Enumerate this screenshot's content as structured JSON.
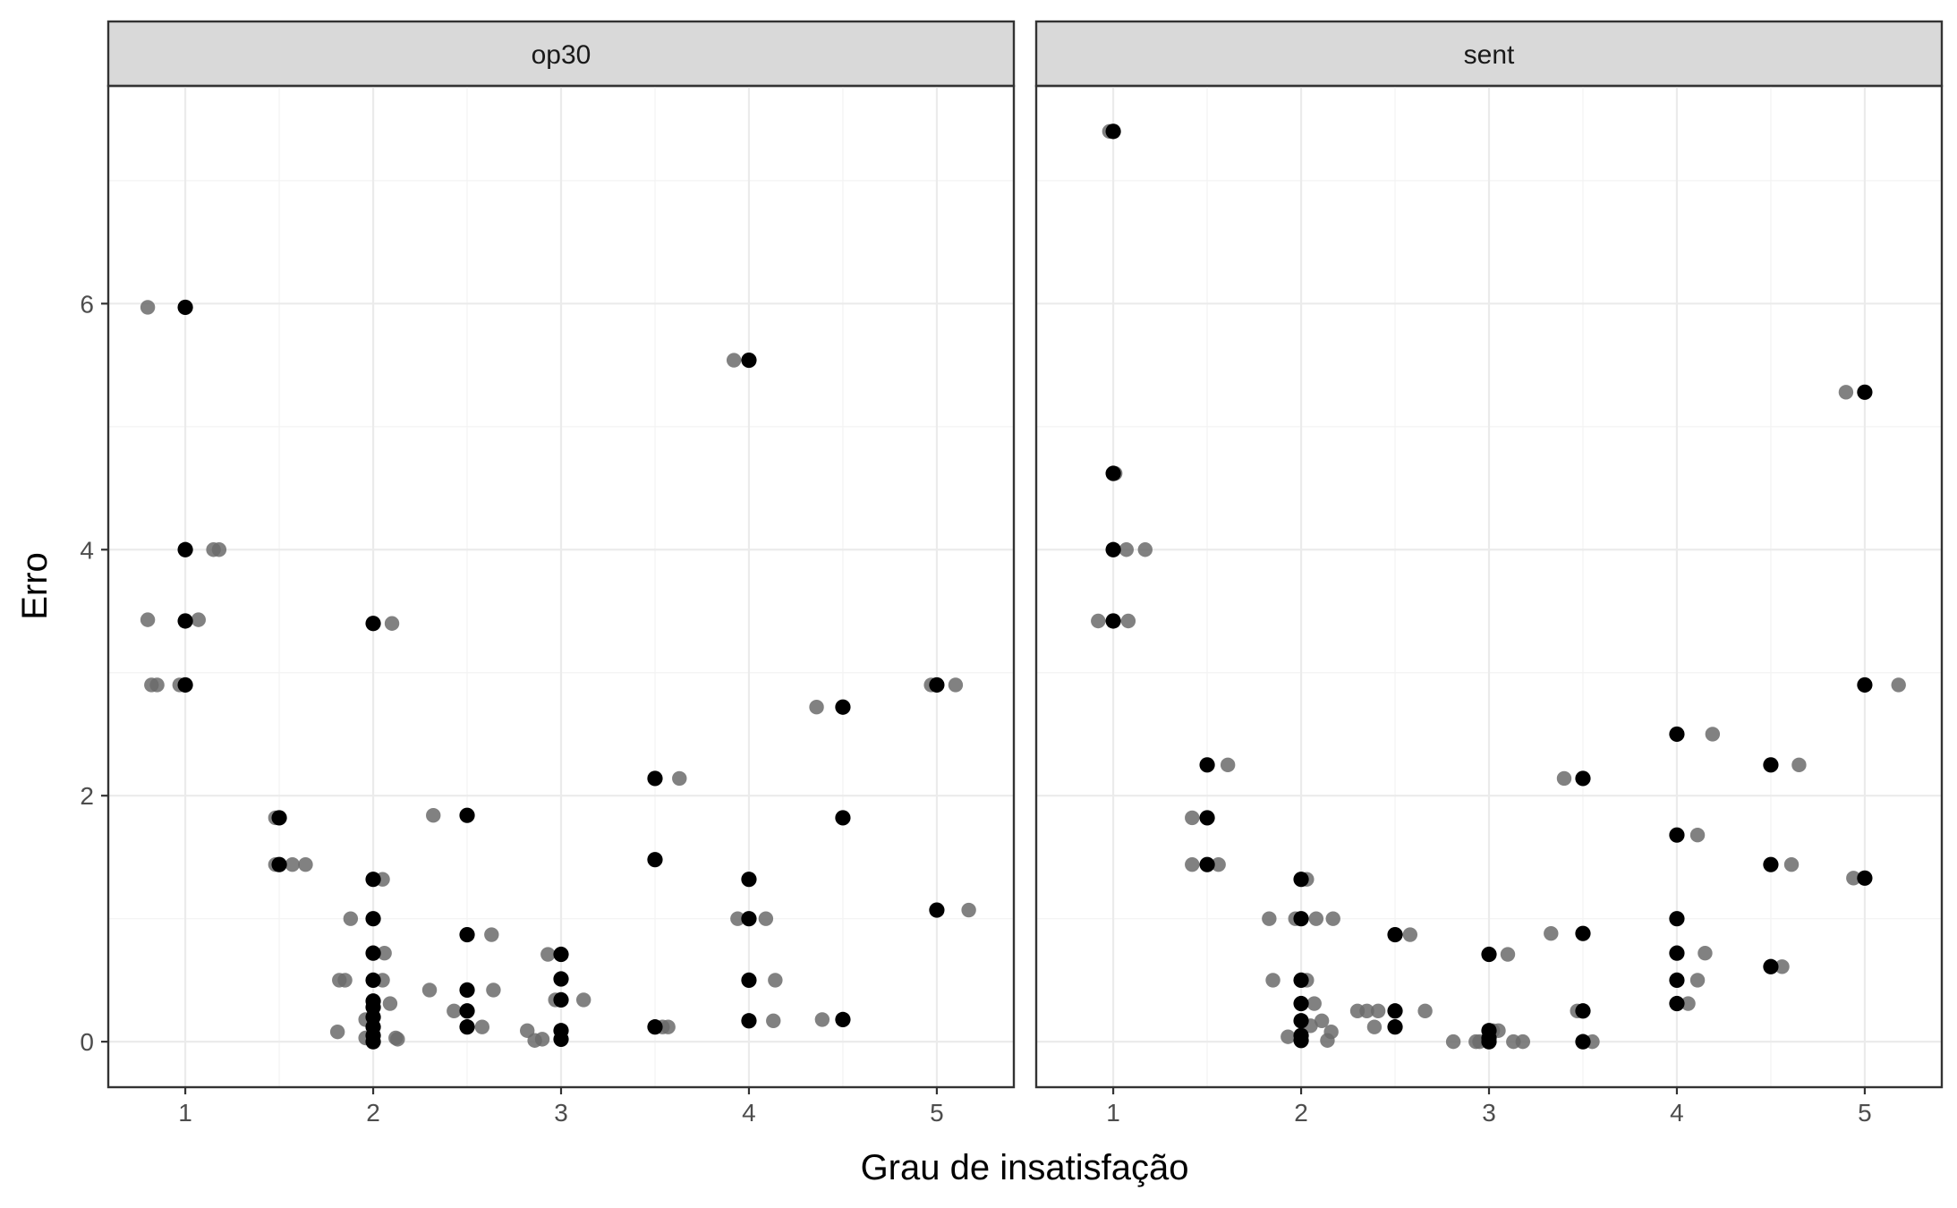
{
  "chart_data": {
    "type": "scatter",
    "xlabel": "Grau de insatisfação",
    "ylabel": "Erro",
    "xlim": [
      0.59,
      5.41
    ],
    "ylim": [
      -0.37,
      7.77
    ],
    "x_ticks": [
      "1",
      "2",
      "3",
      "4",
      "5"
    ],
    "y_ticks": [
      "0",
      "2",
      "4",
      "6"
    ],
    "grid": true,
    "legend": "none",
    "colors": {
      "jitter_points": "#6b6b6b",
      "exact_points": "#000000",
      "strip_fill": "#d9d9d9",
      "grid_major": "#ebebeb",
      "grid_minor": "#f3f3f3",
      "panel_border": "#333333"
    },
    "panels": [
      {
        "title": "op30",
        "exact_points": [
          [
            1,
            5.97
          ],
          [
            1,
            4.0
          ],
          [
            1,
            3.42
          ],
          [
            1,
            2.9
          ],
          [
            1.5,
            1.82
          ],
          [
            1.5,
            1.44
          ],
          [
            2,
            3.4
          ],
          [
            2,
            1.32
          ],
          [
            2,
            1.0
          ],
          [
            2,
            0.72
          ],
          [
            2,
            0.5
          ],
          [
            2,
            0.33
          ],
          [
            2,
            0.28
          ],
          [
            2,
            0.2
          ],
          [
            2,
            0.12
          ],
          [
            2,
            0.05
          ],
          [
            2,
            0.0
          ],
          [
            2.5,
            1.84
          ],
          [
            2.5,
            0.87
          ],
          [
            2.5,
            0.42
          ],
          [
            2.5,
            0.25
          ],
          [
            2.5,
            0.12
          ],
          [
            3,
            0.71
          ],
          [
            3,
            0.51
          ],
          [
            3,
            0.34
          ],
          [
            3,
            0.09
          ],
          [
            3,
            0.02
          ],
          [
            3.5,
            2.14
          ],
          [
            3.5,
            1.48
          ],
          [
            3.5,
            0.12
          ],
          [
            4,
            5.54
          ],
          [
            4,
            1.32
          ],
          [
            4,
            1.0
          ],
          [
            4,
            0.5
          ],
          [
            4,
            0.17
          ],
          [
            4.5,
            2.72
          ],
          [
            4.5,
            1.82
          ],
          [
            4.5,
            0.18
          ],
          [
            5,
            2.9
          ],
          [
            5,
            1.07
          ]
        ],
        "jitter_points": [
          [
            0.8,
            5.97
          ],
          [
            0.8,
            3.43
          ],
          [
            0.82,
            2.9
          ],
          [
            0.85,
            2.9
          ],
          [
            0.97,
            2.9
          ],
          [
            1.07,
            3.43
          ],
          [
            1.15,
            4.0
          ],
          [
            1.18,
            4.0
          ],
          [
            1.48,
            1.82
          ],
          [
            1.48,
            1.44
          ],
          [
            1.57,
            1.44
          ],
          [
            1.64,
            1.44
          ],
          [
            1.81,
            0.08
          ],
          [
            1.82,
            0.5
          ],
          [
            1.85,
            0.5
          ],
          [
            1.88,
            1.0
          ],
          [
            1.96,
            0.18
          ],
          [
            1.96,
            0.03
          ],
          [
            2.05,
            1.32
          ],
          [
            2.05,
            0.5
          ],
          [
            2.06,
            0.72
          ],
          [
            2.09,
            0.31
          ],
          [
            2.1,
            3.4
          ],
          [
            2.12,
            0.03
          ],
          [
            2.13,
            0.02
          ],
          [
            2.3,
            0.42
          ],
          [
            2.32,
            1.84
          ],
          [
            2.43,
            0.25
          ],
          [
            2.58,
            0.12
          ],
          [
            2.63,
            0.87
          ],
          [
            2.64,
            0.42
          ],
          [
            2.82,
            0.09
          ],
          [
            2.86,
            0.01
          ],
          [
            2.9,
            0.02
          ],
          [
            2.93,
            0.71
          ],
          [
            2.97,
            0.34
          ],
          [
            3.12,
            0.34
          ],
          [
            3.5,
            0.12
          ],
          [
            3.54,
            0.12
          ],
          [
            3.57,
            0.12
          ],
          [
            3.63,
            2.14
          ],
          [
            3.92,
            5.54
          ],
          [
            3.94,
            1.0
          ],
          [
            4.0,
            1.32
          ],
          [
            4.09,
            1.0
          ],
          [
            4.13,
            0.17
          ],
          [
            4.14,
            0.5
          ],
          [
            4.36,
            2.72
          ],
          [
            4.39,
            0.18
          ],
          [
            4.97,
            2.9
          ],
          [
            5.1,
            2.9
          ],
          [
            5.17,
            1.07
          ]
        ]
      },
      {
        "title": "sent",
        "exact_points": [
          [
            1,
            7.4
          ],
          [
            1,
            4.62
          ],
          [
            1,
            4.0
          ],
          [
            1,
            3.42
          ],
          [
            1.5,
            2.25
          ],
          [
            1.5,
            1.82
          ],
          [
            1.5,
            1.44
          ],
          [
            2,
            1.32
          ],
          [
            2,
            1.0
          ],
          [
            2,
            0.5
          ],
          [
            2,
            0.31
          ],
          [
            2,
            0.17
          ],
          [
            2,
            0.05
          ],
          [
            2,
            0.01
          ],
          [
            2.5,
            0.87
          ],
          [
            2.5,
            0.25
          ],
          [
            2.5,
            0.12
          ],
          [
            3,
            0.71
          ],
          [
            3,
            0.09
          ],
          [
            3,
            0.03
          ],
          [
            3,
            0.0
          ],
          [
            3.5,
            2.14
          ],
          [
            3.5,
            0.88
          ],
          [
            3.5,
            0.25
          ],
          [
            3.5,
            0.0
          ],
          [
            4,
            2.5
          ],
          [
            4,
            1.68
          ],
          [
            4,
            1.0
          ],
          [
            4,
            0.72
          ],
          [
            4,
            0.5
          ],
          [
            4,
            0.31
          ],
          [
            4.5,
            2.25
          ],
          [
            4.5,
            1.44
          ],
          [
            4.5,
            0.61
          ],
          [
            5,
            5.28
          ],
          [
            5,
            2.9
          ],
          [
            5,
            1.33
          ]
        ],
        "jitter_points": [
          [
            0.98,
            7.4
          ],
          [
            0.92,
            3.42
          ],
          [
            1.01,
            4.62
          ],
          [
            1.07,
            4.0
          ],
          [
            1.08,
            3.42
          ],
          [
            1.17,
            4.0
          ],
          [
            1.42,
            1.82
          ],
          [
            1.42,
            1.44
          ],
          [
            1.56,
            1.44
          ],
          [
            1.61,
            2.25
          ],
          [
            1.83,
            1.0
          ],
          [
            1.85,
            0.5
          ],
          [
            1.93,
            0.04
          ],
          [
            1.97,
            1.0
          ],
          [
            2.03,
            0.5
          ],
          [
            2.03,
            1.32
          ],
          [
            2.05,
            0.13
          ],
          [
            2.07,
            0.31
          ],
          [
            2.08,
            1.0
          ],
          [
            2.11,
            0.17
          ],
          [
            2.14,
            0.01
          ],
          [
            2.16,
            0.08
          ],
          [
            2.17,
            1.0
          ],
          [
            2.3,
            0.25
          ],
          [
            2.35,
            0.25
          ],
          [
            2.39,
            0.12
          ],
          [
            2.41,
            0.25
          ],
          [
            2.58,
            0.87
          ],
          [
            2.66,
            0.25
          ],
          [
            2.81,
            0.0
          ],
          [
            2.93,
            0.0
          ],
          [
            2.95,
            0.0
          ],
          [
            3.02,
            0.09
          ],
          [
            3.05,
            0.09
          ],
          [
            3.1,
            0.71
          ],
          [
            3.13,
            0.0
          ],
          [
            3.18,
            0.0
          ],
          [
            3.33,
            0.88
          ],
          [
            3.4,
            2.14
          ],
          [
            3.47,
            0.25
          ],
          [
            3.55,
            0.0
          ],
          [
            4.06,
            0.31
          ],
          [
            4.11,
            0.5
          ],
          [
            4.11,
            1.68
          ],
          [
            4.15,
            0.72
          ],
          [
            4.19,
            2.5
          ],
          [
            4.56,
            0.61
          ],
          [
            4.61,
            1.44
          ],
          [
            4.65,
            2.25
          ],
          [
            4.9,
            5.28
          ],
          [
            4.94,
            1.33
          ],
          [
            5.18,
            2.9
          ]
        ]
      }
    ]
  }
}
